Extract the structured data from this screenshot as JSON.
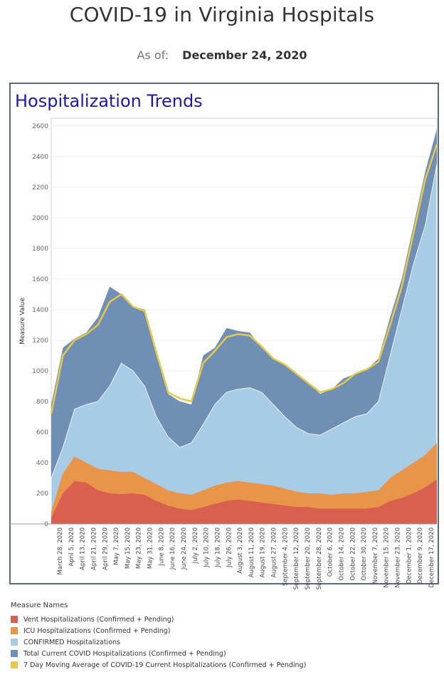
{
  "header": {
    "title": "COVID-19 in Virginia Hospitals",
    "asof_label": "As of:",
    "asof_date": "December 24, 2020"
  },
  "section_title": "Hospitalization Trends",
  "legend": {
    "title": "Measure Names",
    "items": [
      {
        "label": "Vent Hospitalizations (Confirmed + Pending)",
        "color": "#d9604f"
      },
      {
        "label": "ICU Hospitalizations (Confirmed + Pending)",
        "color": "#e8954a"
      },
      {
        "label": "CONFIRMED Hospitalizations",
        "color": "#a8cbe6"
      },
      {
        "label": "Total Current COVID Hospitalizations (Confirmed + Pending)",
        "color": "#6f8fb5"
      },
      {
        "label": "7 Day Moving Average of COVID-19 Current Hospitalizations (Confirmed + Pending)",
        "color": "#e8c84a"
      }
    ]
  },
  "chart_data": {
    "type": "area",
    "ylabel": "Measure Value",
    "ylim": [
      0,
      2650
    ],
    "yticks": [
      0,
      200,
      400,
      600,
      800,
      1000,
      1200,
      1400,
      1600,
      1800,
      2000,
      2200,
      2400,
      2600
    ],
    "x_tick_labels": [
      "March 28, 2020",
      "April 5, 2020",
      "April 13, 2020",
      "April 21, 2020",
      "April 29, 2020",
      "May 7, 2020",
      "May 15, 2020",
      "May 23, 2020",
      "May 31, 2020",
      "June 8, 2020",
      "June 16, 2020",
      "June 24, 2020",
      "July 2, 2020",
      "July 10, 2020",
      "July 18, 2020",
      "July 26, 2020",
      "August 3, 2020",
      "August 11, 2020",
      "August 19, 2020",
      "August 27, 2020",
      "September 4, 2020",
      "September 12, 2020",
      "September 20, 2020",
      "September 28, 2020",
      "October 6, 2020",
      "October 14, 2020",
      "October 22, 2020",
      "October 30, 2020",
      "November 7, 2020",
      "November 15, 2020",
      "November 23, 2020",
      "December 1, 2020",
      "December 9, 2020",
      "December 17, 2020"
    ],
    "series": [
      {
        "name": "Vent Hospitalizations (Confirmed + Pending)",
        "color": "#d9604f",
        "values": [
          40,
          200,
          280,
          270,
          220,
          200,
          195,
          200,
          190,
          150,
          120,
          100,
          90,
          110,
          130,
          150,
          160,
          150,
          140,
          130,
          120,
          110,
          110,
          100,
          100,
          100,
          100,
          100,
          110,
          150,
          170,
          200,
          240,
          290
        ]
      },
      {
        "name": "ICU Hospitalizations (Confirmed + Pending)",
        "color": "#e8954a",
        "values": [
          80,
          330,
          440,
          400,
          360,
          350,
          340,
          340,
          300,
          260,
          220,
          200,
          190,
          220,
          250,
          270,
          280,
          270,
          260,
          250,
          230,
          210,
          200,
          200,
          190,
          200,
          200,
          210,
          220,
          300,
          350,
          400,
          450,
          530
        ]
      },
      {
        "name": "CONFIRMED Hospitalizations",
        "color": "#a8cbe6",
        "values": [
          300,
          500,
          750,
          780,
          800,
          900,
          1050,
          1000,
          900,
          700,
          570,
          500,
          530,
          650,
          780,
          860,
          880,
          890,
          860,
          780,
          700,
          630,
          590,
          580,
          620,
          660,
          700,
          720,
          800,
          1100,
          1400,
          1700,
          1950,
          2350
        ]
      },
      {
        "name": "Total Current COVID Hospitalizations (Confirmed + Pending)",
        "color": "#6f8fb5",
        "values": [
          780,
          1150,
          1210,
          1250,
          1350,
          1550,
          1500,
          1420,
          1400,
          1100,
          850,
          800,
          780,
          1100,
          1150,
          1280,
          1260,
          1250,
          1150,
          1080,
          1040,
          980,
          920,
          850,
          880,
          950,
          980,
          1010,
          1080,
          1350,
          1600,
          1950,
          2300,
          2580
        ]
      },
      {
        "name": "7 Day Moving Average of COVID-19 Current Hospitalizations (Confirmed + Pending)",
        "color": "#e8c84a",
        "values": [
          720,
          1100,
          1200,
          1240,
          1300,
          1450,
          1500,
          1420,
          1390,
          1120,
          860,
          820,
          800,
          1050,
          1130,
          1220,
          1240,
          1230,
          1160,
          1080,
          1040,
          980,
          920,
          860,
          880,
          920,
          980,
          1010,
          1060,
          1300,
          1550,
          1900,
          2250,
          2480
        ]
      }
    ]
  }
}
